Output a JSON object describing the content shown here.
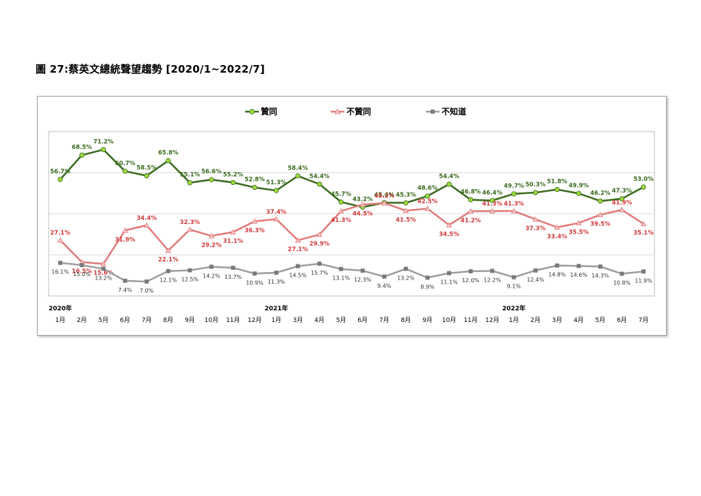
{
  "page": {
    "title": "圖 27:蔡英文總統聲望趨勢  [2020/1~2022/7]"
  },
  "chart_data": {
    "type": "line",
    "title": "",
    "xlabel": "",
    "ylabel": "",
    "legend_position": "top",
    "grid": "horizontal",
    "ylim": [
      0,
      80
    ],
    "categories": [
      "1月",
      "2月",
      "5月",
      "6月",
      "7月",
      "8月",
      "9月",
      "10月",
      "11月",
      "12月",
      "1月",
      "3月",
      "4月",
      "5月",
      "6月",
      "7月",
      "8月",
      "9月",
      "10月",
      "11月",
      "12月",
      "1月",
      "2月",
      "3月",
      "4月",
      "5月",
      "6月",
      "7月"
    ],
    "year_labels": [
      {
        "index": 0,
        "label": "2020年"
      },
      {
        "index": 10,
        "label": "2021年"
      },
      {
        "index": 21,
        "label": "2022年"
      }
    ],
    "series": [
      {
        "name": "贊同",
        "color": "#3a6b1f",
        "marker_color": "#9bd93c",
        "label_color": "#3a6b1f",
        "values": [
          56.7,
          68.5,
          71.2,
          60.7,
          58.5,
          65.8,
          55.1,
          56.6,
          55.2,
          52.8,
          51.3,
          58.4,
          54.4,
          45.7,
          43.2,
          45.4,
          45.3,
          48.6,
          54.4,
          46.8,
          46.4,
          49.7,
          50.3,
          51.8,
          49.9,
          46.2,
          47.3,
          53.0
        ],
        "labels": [
          "56.7%",
          "68.5%",
          "71.2%",
          "60.7%",
          "58.5%",
          "65.8%",
          "55.1%",
          "56.6%",
          "55.2%",
          "52.8%",
          "51.3%",
          "58.4%",
          "54.4%",
          "45.7%",
          "43.2%",
          "45.4%",
          "45.3%",
          "48.6%",
          "54.4%",
          "46.8%",
          "46.4%",
          "49.7%",
          "50.3%",
          "51.8%",
          "49.9%",
          "46.2%",
          "47.3%",
          "53.0%"
        ]
      },
      {
        "name": "不贊同",
        "color": "#e07b7b",
        "marker_color": "#f4c6c6",
        "label_color": "#d23a3a",
        "values": [
          27.1,
          16.5,
          15.6,
          31.9,
          34.4,
          22.1,
          32.3,
          29.2,
          31.1,
          36.3,
          37.4,
          27.1,
          29.9,
          41.3,
          44.5,
          45.2,
          41.5,
          42.5,
          34.5,
          41.2,
          41.3,
          41.3,
          37.3,
          33.4,
          35.5,
          39.5,
          41.9,
          35.1
        ],
        "labels": [
          "27.1%",
          "16.5%",
          "15.6%",
          "31.9%",
          "34.4%",
          "22.1%",
          "32.3%",
          "29.2%",
          "31.1%",
          "36.3%",
          "37.4%",
          "27.1%",
          "29.9%",
          "41.3%",
          "44.5%",
          "45.2%",
          "41.5%",
          "42.5%",
          "34.5%",
          "41.2%",
          "41.3%",
          "41.3%",
          "37.3%",
          "33.4%",
          "35.5%",
          "39.5%",
          "41.9%",
          "35.1%"
        ]
      },
      {
        "name": "不知道",
        "color": "#9e9e9e",
        "marker_color": "#7a7a7a",
        "label_color": "#333333",
        "values": [
          16.1,
          15.0,
          13.2,
          7.4,
          7.0,
          12.1,
          12.5,
          14.2,
          13.7,
          10.9,
          11.3,
          14.5,
          15.7,
          13.1,
          12.3,
          9.4,
          13.2,
          8.9,
          11.1,
          12.0,
          12.2,
          9.1,
          12.4,
          14.8,
          14.6,
          14.3,
          10.8,
          11.9
        ],
        "labels": [
          "16.1%",
          "15.0%",
          "13.2%",
          "7.4%",
          "7.0%",
          "12.1%",
          "12.5%",
          "14.2%",
          "13.7%",
          "10.9%",
          "11.3%",
          "14.5%",
          "15.7%",
          "13.1%",
          "12.3%",
          "9.4%",
          "13.2%",
          "8.9%",
          "11.1%",
          "12.0%",
          "12.2%",
          "9.1%",
          "12.4%",
          "14.8%",
          "14.6%",
          "14.3%",
          "10.8%",
          "11.9%"
        ]
      }
    ]
  }
}
